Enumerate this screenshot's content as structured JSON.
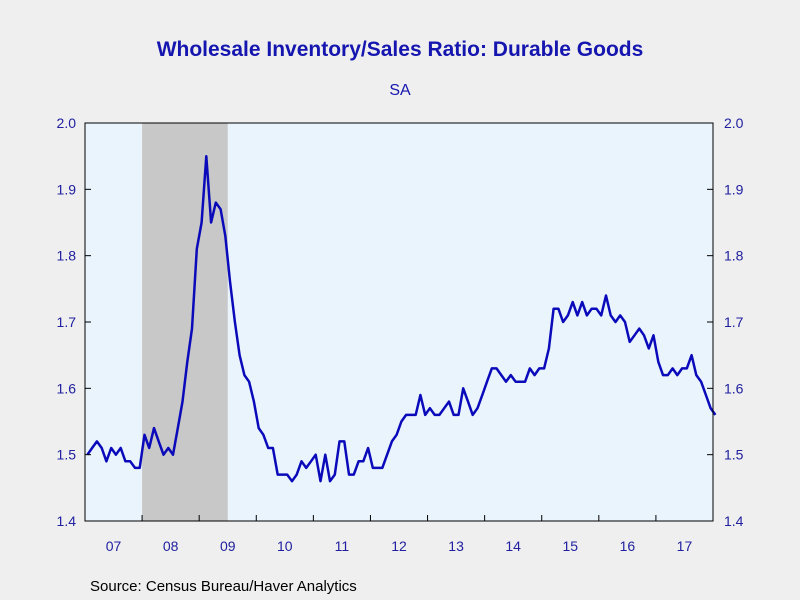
{
  "chart_data": {
    "type": "line",
    "title": "Wholesale Inventory/Sales Ratio: Durable Goods",
    "subtitle": "SA",
    "source": "Source:  Census Bureau/Haver Analytics",
    "x_start": "2007-01",
    "frequency": "monthly",
    "xlim": [
      "2007-01",
      "2017-12"
    ],
    "ylim": [
      1.4,
      2.0
    ],
    "yticks": [
      "1.4",
      "1.5",
      "1.6",
      "1.7",
      "1.8",
      "1.9",
      "2.0"
    ],
    "xtick_labels": [
      "07",
      "08",
      "09",
      "10",
      "11",
      "12",
      "13",
      "14",
      "15",
      "16",
      "17"
    ],
    "recession": {
      "start": "2008-01",
      "end": "2009-06"
    },
    "grid": false,
    "colors": {
      "line": "#0a0aba",
      "recession": "#c8c8c8",
      "plot_bg": "#eaf4fd",
      "text": "#1515b0"
    },
    "series": [
      {
        "values": [
          1.5,
          1.51,
          1.52,
          1.51,
          1.49,
          1.51,
          1.5,
          1.51,
          1.49,
          1.49,
          1.48,
          1.48,
          1.53,
          1.51,
          1.54,
          1.52,
          1.5,
          1.51,
          1.5,
          1.54,
          1.58,
          1.64,
          1.69,
          1.81,
          1.85,
          1.95,
          1.85,
          1.88,
          1.87,
          1.83,
          1.76,
          1.7,
          1.65,
          1.62,
          1.61,
          1.58,
          1.54,
          1.53,
          1.51,
          1.51,
          1.47,
          1.47,
          1.47,
          1.46,
          1.47,
          1.49,
          1.48,
          1.49,
          1.5,
          1.46,
          1.5,
          1.46,
          1.47,
          1.52,
          1.52,
          1.47,
          1.47,
          1.49,
          1.49,
          1.51,
          1.48,
          1.48,
          1.48,
          1.5,
          1.52,
          1.53,
          1.55,
          1.56,
          1.56,
          1.56,
          1.59,
          1.56,
          1.57,
          1.56,
          1.56,
          1.57,
          1.58,
          1.56,
          1.56,
          1.6,
          1.58,
          1.56,
          1.57,
          1.59,
          1.61,
          1.63,
          1.63,
          1.62,
          1.61,
          1.62,
          1.61,
          1.61,
          1.61,
          1.63,
          1.62,
          1.63,
          1.63,
          1.66,
          1.72,
          1.72,
          1.7,
          1.71,
          1.73,
          1.71,
          1.73,
          1.71,
          1.72,
          1.72,
          1.71,
          1.74,
          1.71,
          1.7,
          1.71,
          1.7,
          1.67,
          1.68,
          1.69,
          1.68,
          1.66,
          1.68,
          1.64,
          1.62,
          1.62,
          1.63,
          1.62,
          1.63,
          1.63,
          1.65,
          1.62,
          1.61,
          1.59,
          1.57,
          1.56
        ]
      }
    ]
  }
}
